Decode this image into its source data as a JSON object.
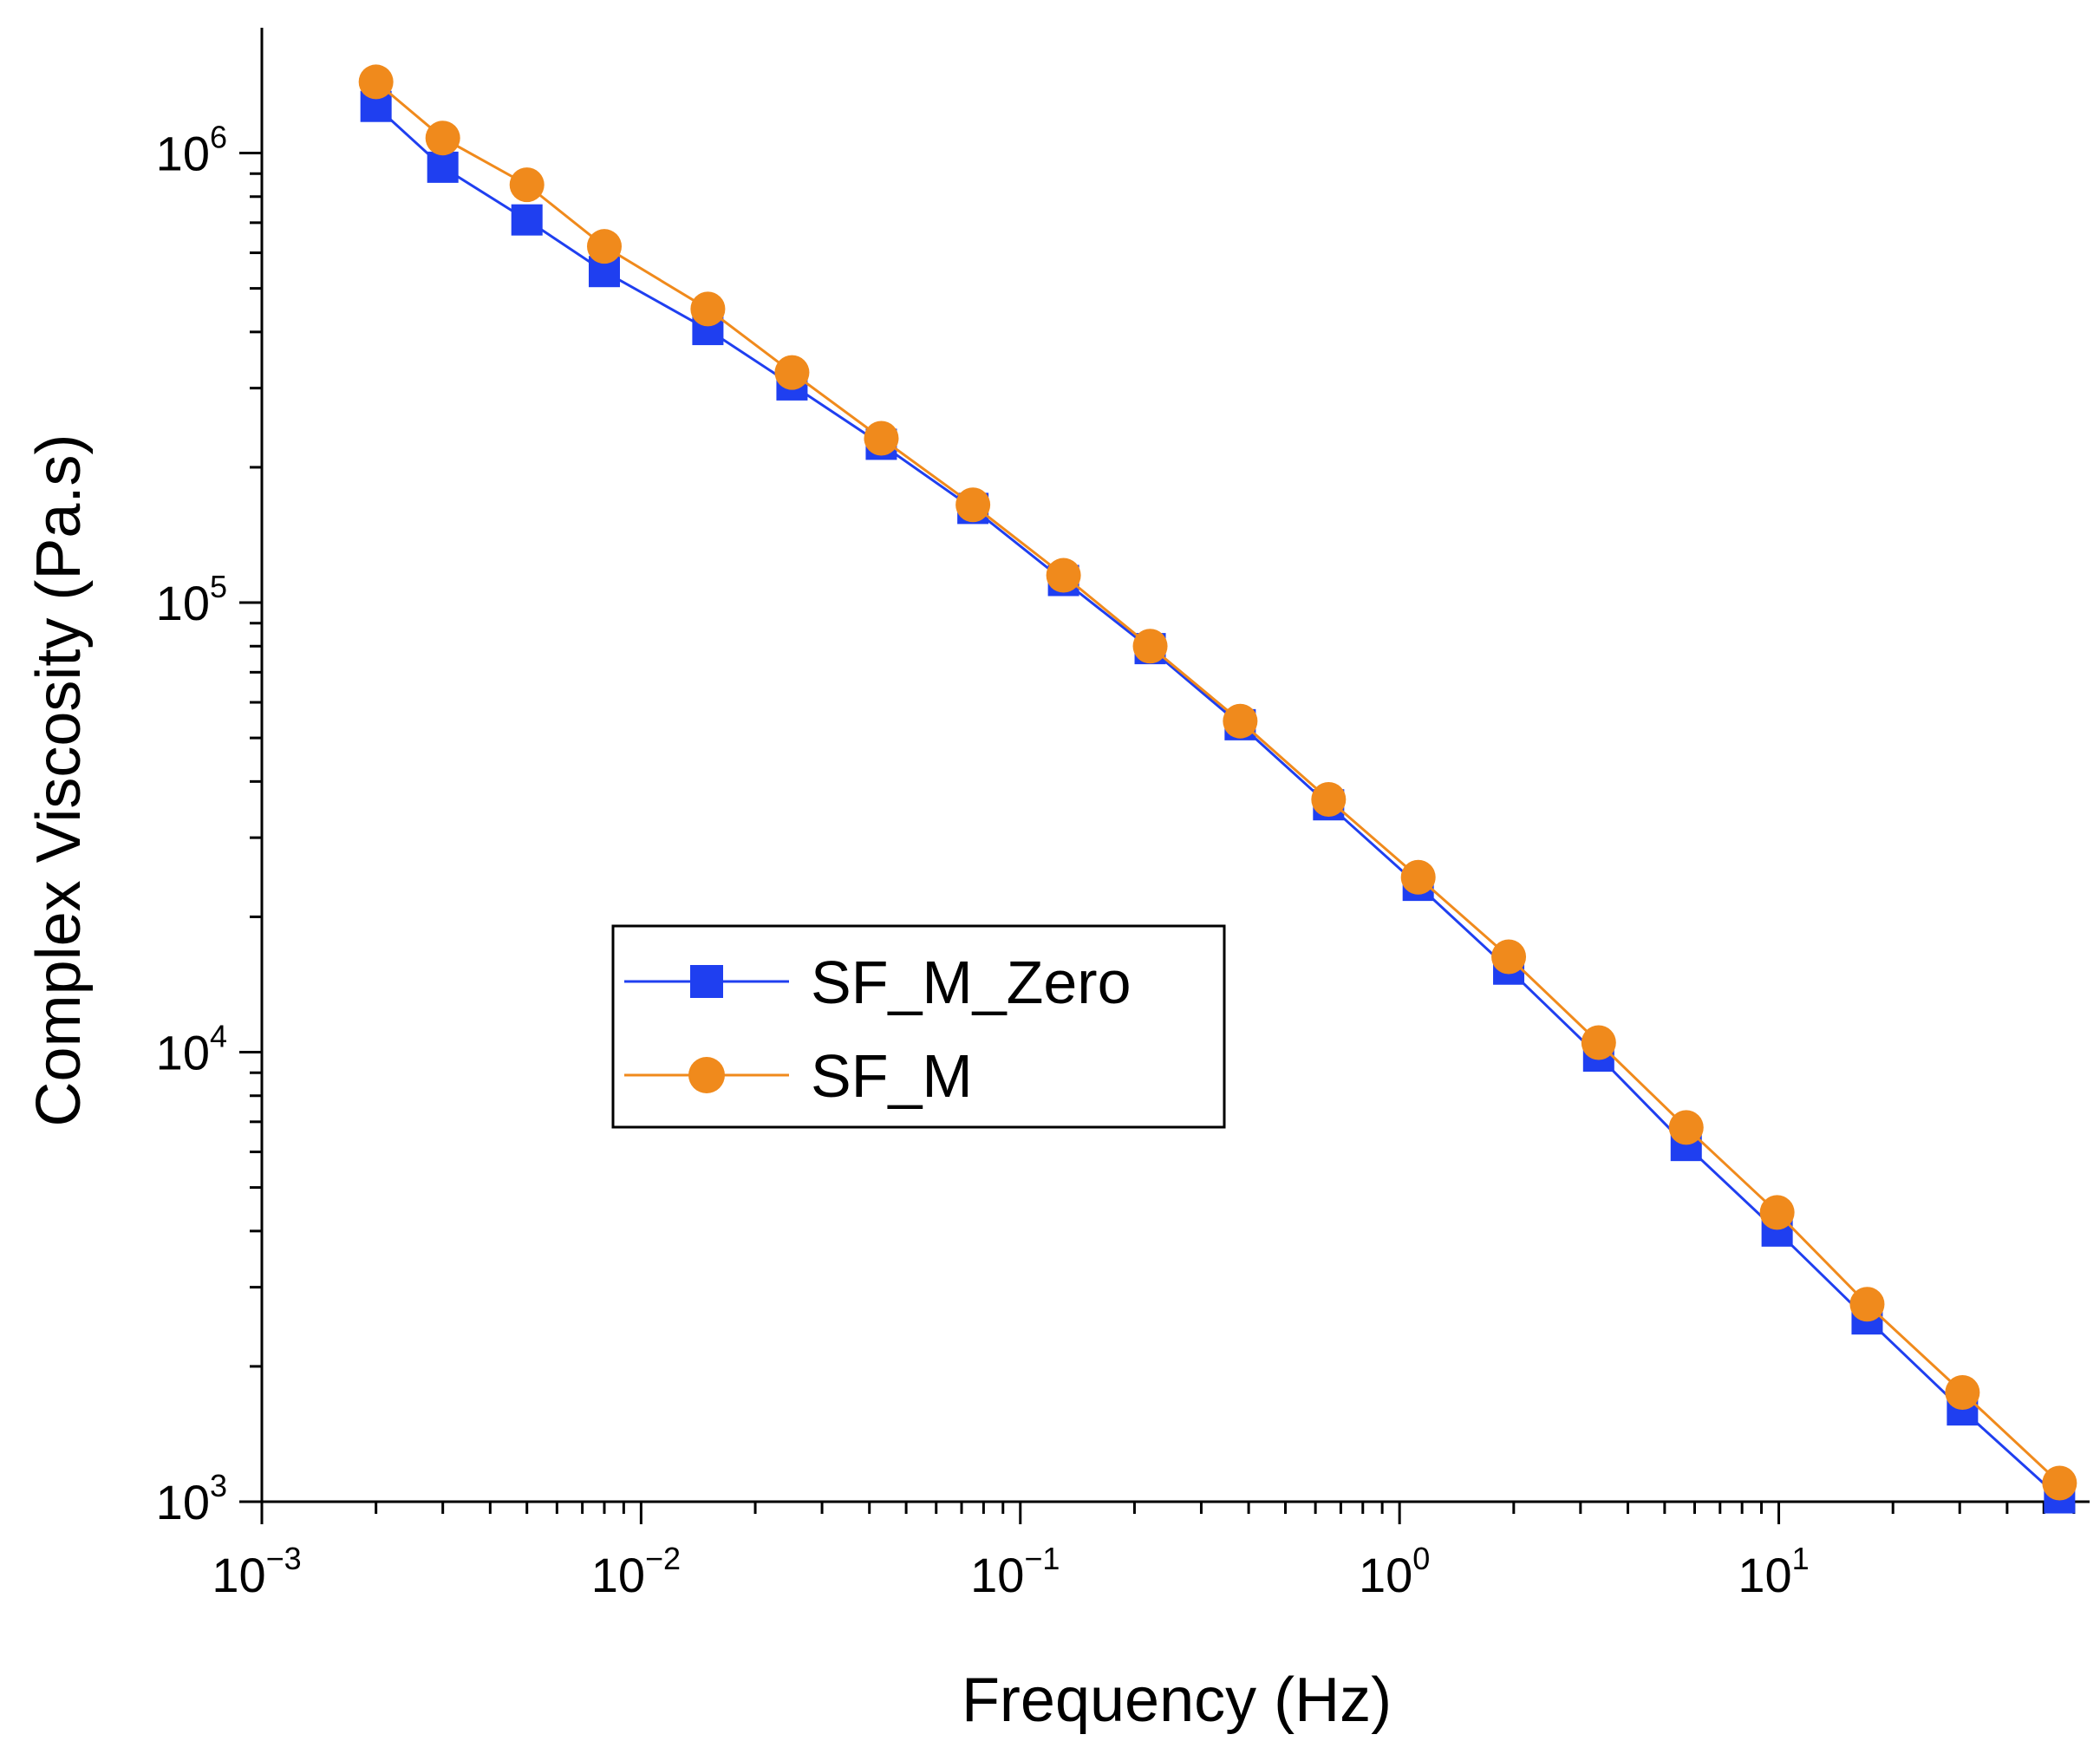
{
  "chart_data": {
    "type": "line",
    "scale": {
      "x": "log",
      "y": "log"
    },
    "xlabel": "Frequency (Hz)",
    "ylabel": "Complex Viscosity (Pa.s)",
    "xlim": [
      0.001,
      66
    ],
    "ylim": [
      1000,
      1900000
    ],
    "x_ticks": [
      {
        "base": "10",
        "exp": "−3",
        "value": 0.001
      },
      {
        "base": "10",
        "exp": "−2",
        "value": 0.01
      },
      {
        "base": "10",
        "exp": "−1",
        "value": 0.1
      },
      {
        "base": "10",
        "exp": "0",
        "value": 1
      },
      {
        "base": "10",
        "exp": "1",
        "value": 10
      }
    ],
    "y_ticks": [
      {
        "base": "10",
        "exp": "3",
        "value": 1000
      },
      {
        "base": "10",
        "exp": "4",
        "value": 10000
      },
      {
        "base": "10",
        "exp": "5",
        "value": 100000
      },
      {
        "base": "10",
        "exp": "6",
        "value": 1000000
      }
    ],
    "x": [
      0.002,
      0.003,
      0.005,
      0.008,
      0.015,
      0.025,
      0.043,
      0.075,
      0.13,
      0.22,
      0.38,
      0.65,
      1.12,
      1.94,
      3.35,
      5.7,
      9.9,
      17.1,
      30.5,
      55
    ],
    "series": [
      {
        "name": "SF_M_Zero",
        "color": "#1f3ff0",
        "marker": "square",
        "values": [
          1270000,
          930000,
          710000,
          545000,
          405000,
          305000,
          225000,
          162000,
          112000,
          79000,
          53500,
          35500,
          23500,
          15300,
          9800,
          6200,
          4000,
          2550,
          1600,
          1020
        ]
      },
      {
        "name": "SF_M",
        "color": "#f08a1c",
        "marker": "circle",
        "values": [
          1440000,
          1080000,
          850000,
          620000,
          450000,
          325000,
          232000,
          165000,
          115000,
          80000,
          54500,
          36500,
          24500,
          16300,
          10500,
          6800,
          4400,
          2750,
          1750,
          1100
        ]
      }
    ],
    "legend": {
      "placement": "center-left",
      "entries": [
        "SF_M_Zero",
        "SF_M"
      ]
    },
    "grid": false
  }
}
